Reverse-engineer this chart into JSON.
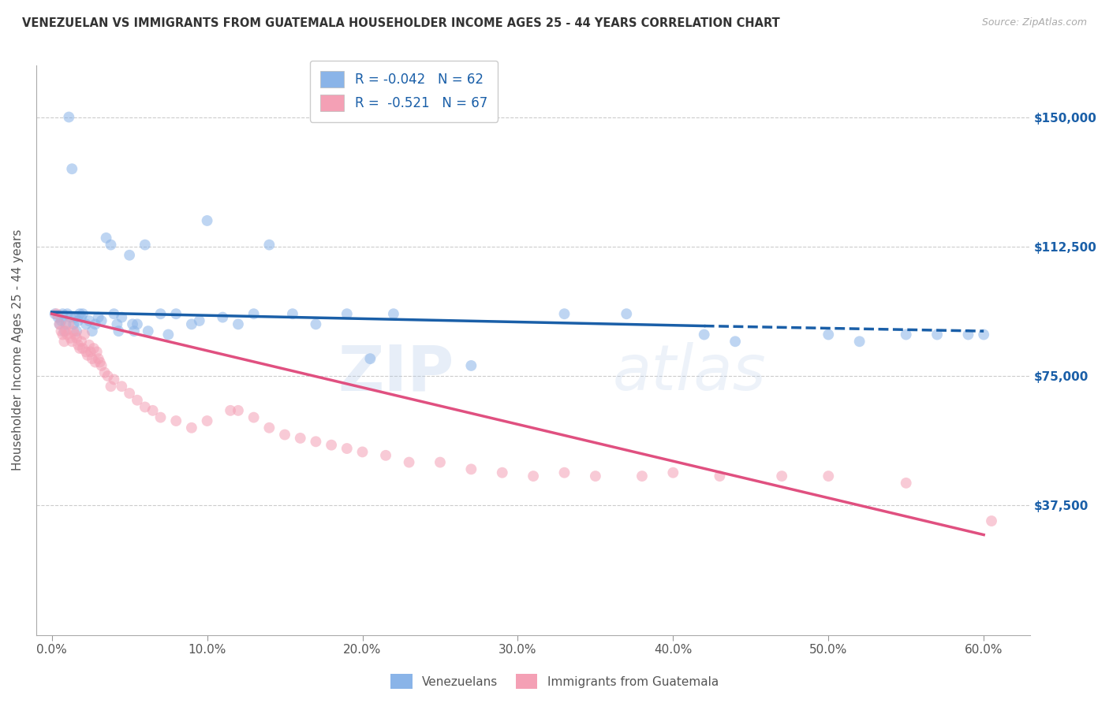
{
  "title": "VENEZUELAN VS IMMIGRANTS FROM GUATEMALA HOUSEHOLDER INCOME AGES 25 - 44 YEARS CORRELATION CHART",
  "source": "Source: ZipAtlas.com",
  "ylabel": "Householder Income Ages 25 - 44 years",
  "xlabel_ticks": [
    "0.0%",
    "",
    "",
    "",
    "",
    "",
    "",
    "",
    "",
    "",
    "10.0%",
    "",
    "",
    "",
    "",
    "",
    "",
    "",
    "",
    "",
    "20.0%",
    "",
    "",
    "",
    "",
    "",
    "",
    "",
    "",
    "",
    "30.0%",
    "",
    "",
    "",
    "",
    "",
    "",
    "",
    "",
    "",
    "40.0%",
    "",
    "",
    "",
    "",
    "",
    "",
    "",
    "",
    "",
    "50.0%",
    "",
    "",
    "",
    "",
    "",
    "",
    "",
    "",
    "",
    "60.0%"
  ],
  "xlabel_vals": [
    0,
    1,
    2,
    3,
    4,
    5,
    6,
    7,
    8,
    9,
    10,
    11,
    12,
    13,
    14,
    15,
    16,
    17,
    18,
    19,
    20,
    21,
    22,
    23,
    24,
    25,
    26,
    27,
    28,
    29,
    30,
    31,
    32,
    33,
    34,
    35,
    36,
    37,
    38,
    39,
    40,
    41,
    42,
    43,
    44,
    45,
    46,
    47,
    48,
    49,
    50,
    51,
    52,
    53,
    54,
    55,
    56,
    57,
    58,
    59,
    60
  ],
  "xtick_major_vals": [
    0,
    10,
    20,
    30,
    40,
    50,
    60
  ],
  "xtick_major_labels": [
    "0.0%",
    "10.0%",
    "20.0%",
    "30.0%",
    "40.0%",
    "50.0%",
    "60.0%"
  ],
  "ytick_vals": [
    0,
    37500,
    75000,
    112500,
    150000
  ],
  "ytick_labels": [
    "",
    "$37,500",
    "$75,000",
    "$112,500",
    "$150,000"
  ],
  "xlim": [
    -1,
    63
  ],
  "ylim": [
    0,
    165000
  ],
  "venezuelan_color": "#8ab4e8",
  "guatemalan_color": "#f4a0b5",
  "line_blue": "#1a5fa8",
  "line_pink": "#e05080",
  "R_venezuelan": -0.042,
  "N_venezuelan": 62,
  "R_guatemalan": -0.521,
  "N_guatemalan": 67,
  "legend_label_1": "Venezuelans",
  "legend_label_2": "Immigrants from Guatemala",
  "watermark": "ZIPatlas",
  "venezuelan_x": [
    0.2,
    0.4,
    0.5,
    0.6,
    0.7,
    0.8,
    0.9,
    1.0,
    1.1,
    1.2,
    1.3,
    1.4,
    1.5,
    1.6,
    1.7,
    1.8,
    1.9,
    2.0,
    2.2,
    2.4,
    2.6,
    2.8,
    3.0,
    3.2,
    3.5,
    3.8,
    4.0,
    4.5,
    5.0,
    5.5,
    6.0,
    7.0,
    8.0,
    9.5,
    10.0,
    11.0,
    13.0,
    14.0,
    15.5,
    17.0,
    19.0,
    20.5,
    22.0,
    27.0,
    33.0,
    37.0,
    42.0,
    44.0,
    50.0,
    52.0,
    55.0,
    57.0,
    59.0,
    60.0,
    4.2,
    4.3,
    5.2,
    5.3,
    6.2,
    7.5,
    9.0,
    12.0
  ],
  "venezuelan_y": [
    93000,
    92000,
    90000,
    91000,
    93000,
    88000,
    90000,
    93000,
    150000,
    92000,
    135000,
    90000,
    92000,
    88000,
    91000,
    93000,
    92000,
    93000,
    90000,
    91000,
    88000,
    90000,
    92000,
    91000,
    115000,
    113000,
    93000,
    92000,
    110000,
    90000,
    113000,
    93000,
    93000,
    91000,
    120000,
    92000,
    93000,
    113000,
    93000,
    90000,
    93000,
    80000,
    93000,
    78000,
    93000,
    93000,
    87000,
    85000,
    87000,
    85000,
    87000,
    87000,
    87000,
    87000,
    90000,
    88000,
    90000,
    88000,
    88000,
    87000,
    90000,
    90000
  ],
  "guatemalan_x": [
    0.3,
    0.5,
    0.6,
    0.7,
    0.8,
    0.9,
    1.0,
    1.1,
    1.2,
    1.3,
    1.4,
    1.5,
    1.6,
    1.7,
    1.8,
    1.9,
    2.0,
    2.1,
    2.2,
    2.3,
    2.4,
    2.5,
    2.6,
    2.7,
    2.8,
    2.9,
    3.0,
    3.1,
    3.2,
    3.4,
    3.6,
    3.8,
    4.0,
    4.5,
    5.0,
    5.5,
    6.0,
    6.5,
    7.0,
    8.0,
    9.0,
    10.0,
    11.5,
    12.0,
    13.0,
    14.0,
    15.0,
    16.0,
    17.0,
    18.0,
    19.0,
    20.0,
    21.5,
    23.0,
    25.0,
    27.0,
    29.0,
    31.0,
    33.0,
    35.0,
    38.0,
    40.0,
    43.0,
    47.0,
    50.0,
    55.0,
    60.5
  ],
  "guatemalan_y": [
    93000,
    90000,
    88000,
    87000,
    85000,
    88000,
    87000,
    90000,
    86000,
    85000,
    88000,
    87000,
    86000,
    84000,
    83000,
    85000,
    83000,
    87000,
    82000,
    81000,
    84000,
    82000,
    80000,
    83000,
    79000,
    82000,
    80000,
    79000,
    78000,
    76000,
    75000,
    72000,
    74000,
    72000,
    70000,
    68000,
    66000,
    65000,
    63000,
    62000,
    60000,
    62000,
    65000,
    65000,
    63000,
    60000,
    58000,
    57000,
    56000,
    55000,
    54000,
    53000,
    52000,
    50000,
    50000,
    48000,
    47000,
    46000,
    47000,
    46000,
    46000,
    47000,
    46000,
    46000,
    46000,
    44000,
    33000
  ],
  "blue_line_x0": 0,
  "blue_line_x1": 42,
  "blue_line_x1_dash": 60,
  "blue_line_y0": 93500,
  "blue_line_y1": 89500,
  "blue_line_y1_dash": 88000,
  "pink_line_x0": 0,
  "pink_line_x1": 60,
  "pink_line_y0": 93000,
  "pink_line_y1": 29000,
  "marker_size": 100,
  "marker_alpha": 0.55,
  "bg_color": "#ffffff",
  "grid_color": "#cccccc"
}
